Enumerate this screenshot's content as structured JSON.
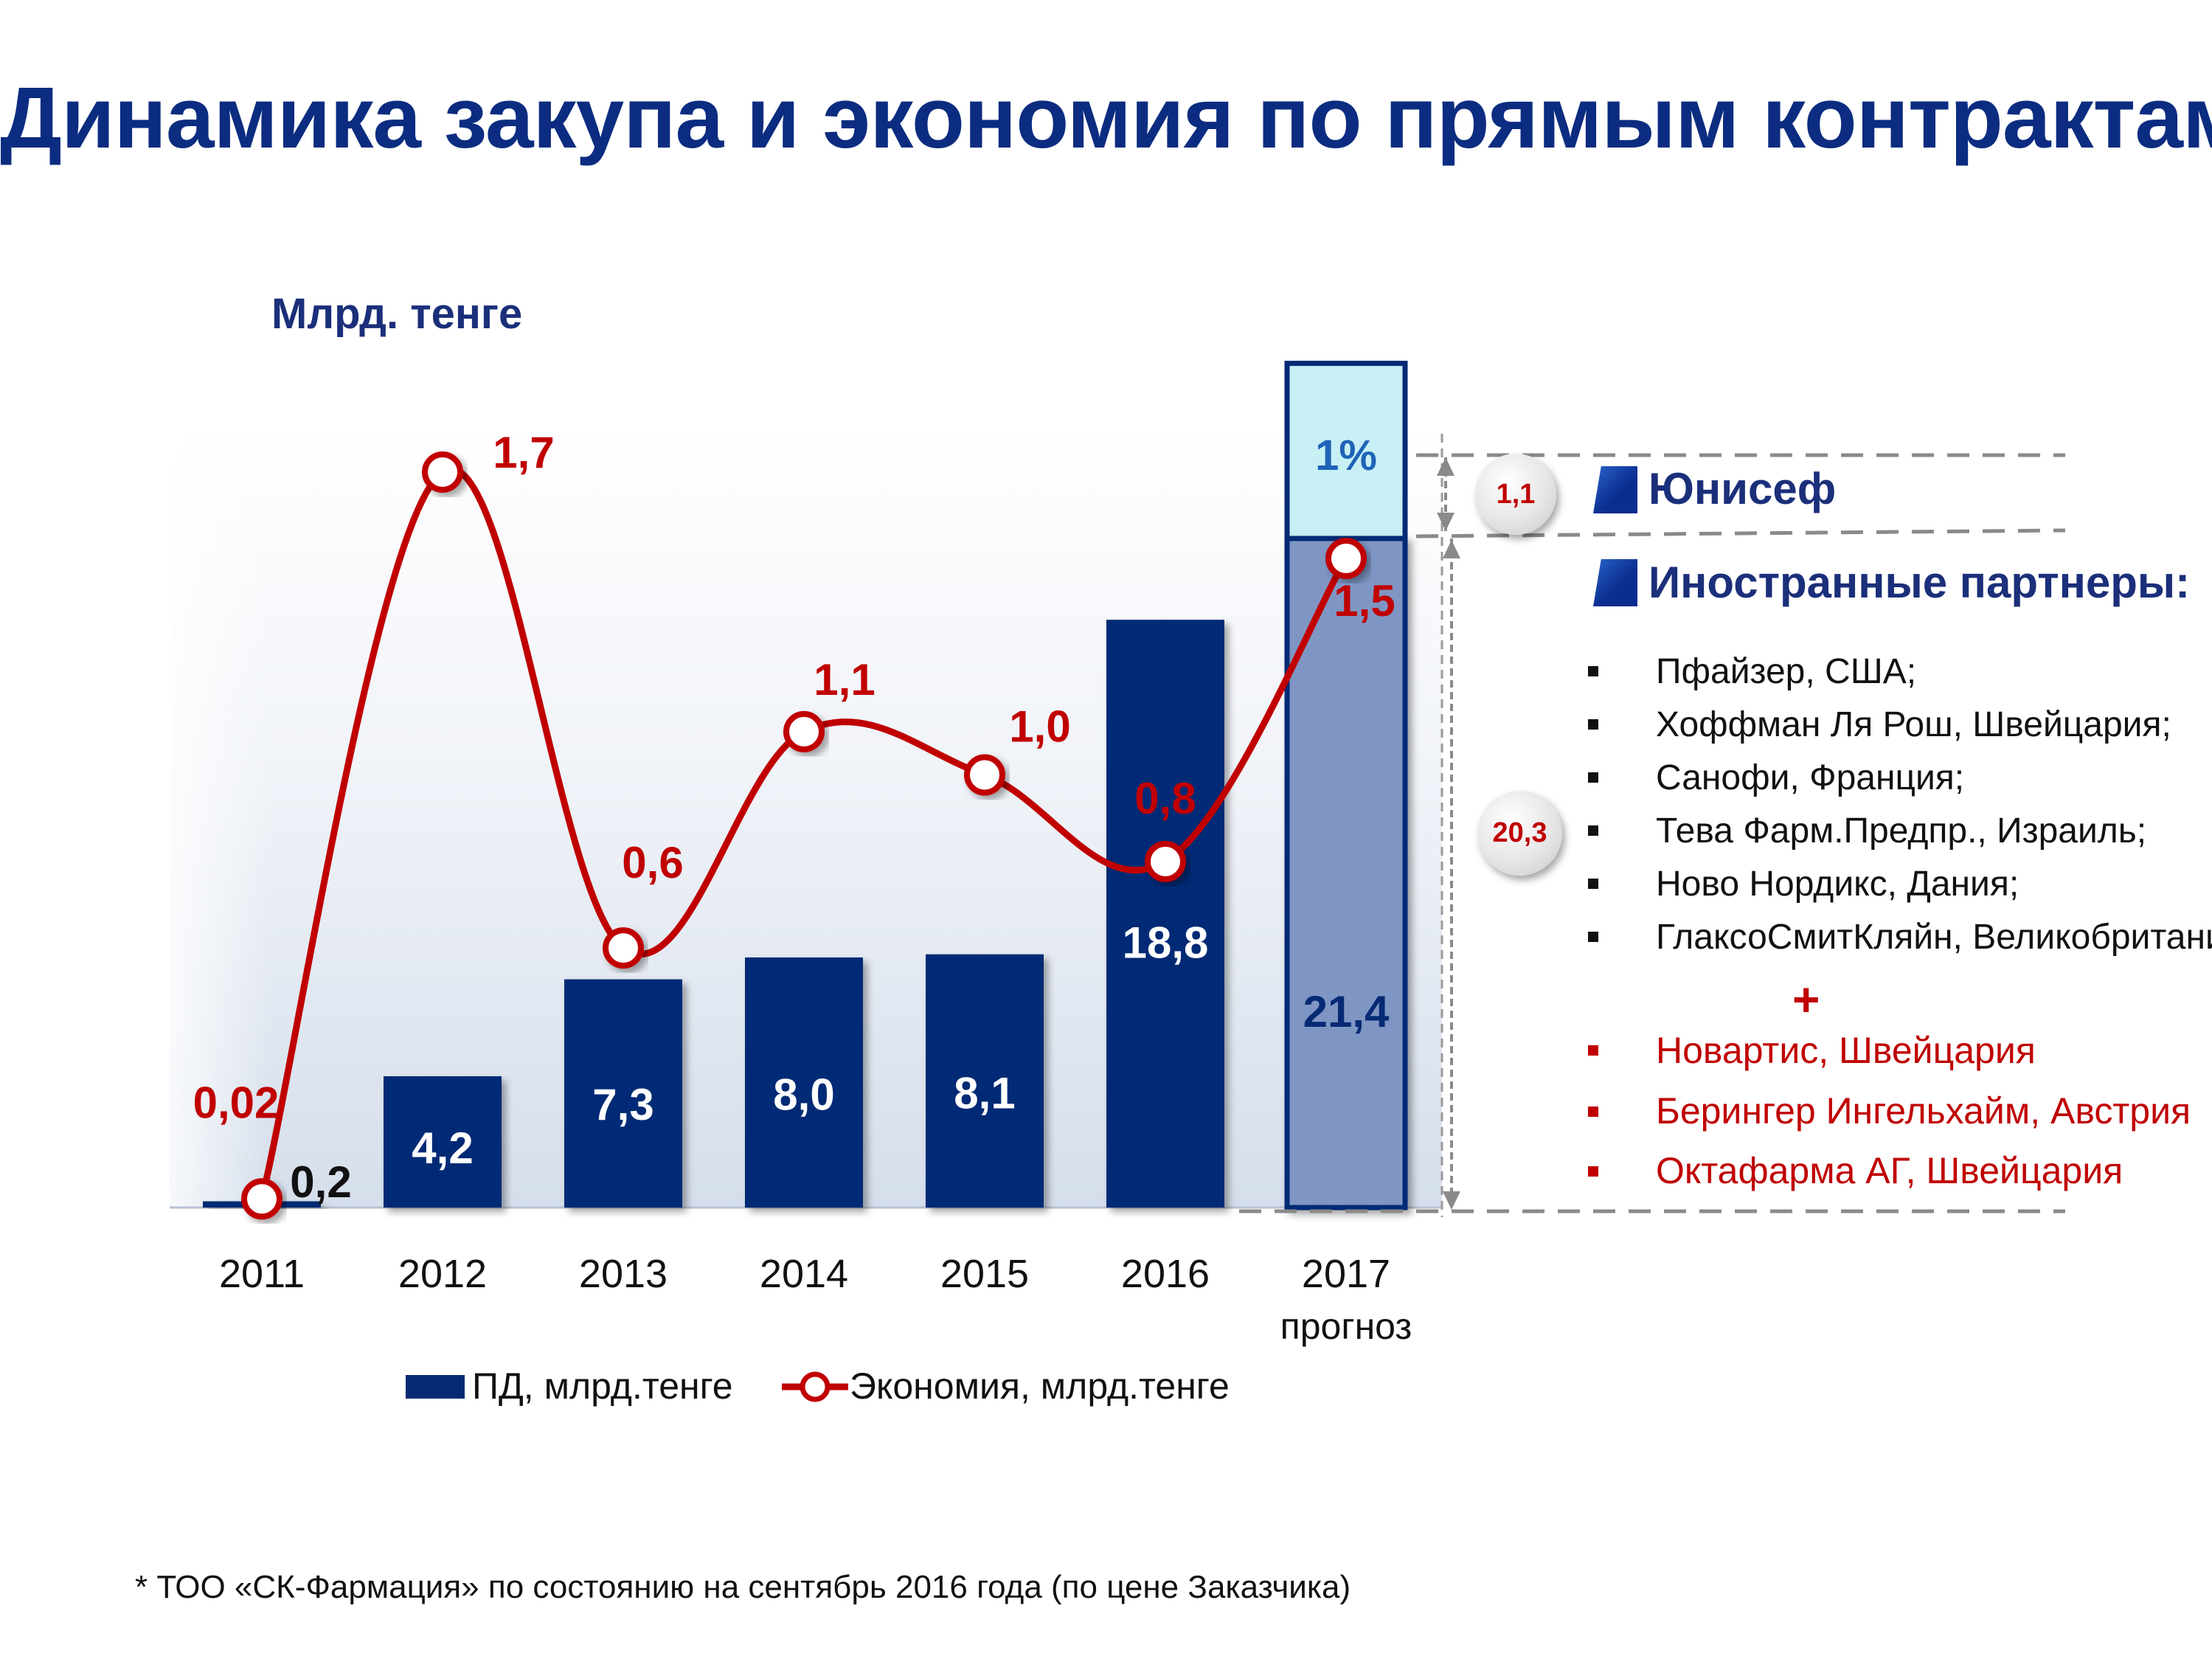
{
  "title": "Динамика закупа и экономия по прямым контрактам",
  "unit_label": "Млрд. тенге",
  "footnote": "* ТОО «СК-Фармация»  по состоянию на  сентябрь 2016 года (по цене Заказчика)",
  "colors": {
    "bar": "#062a74",
    "bar_forecast": "#7f96c4",
    "bar_forecast_top": "#c8f0f4",
    "line": "#c00000",
    "title": "#0b2c80"
  },
  "chart_data": {
    "type": "bar",
    "categories": [
      "2011",
      "2012",
      "2013",
      "2014",
      "2015",
      "2016",
      "2017"
    ],
    "category_sublabels": [
      "",
      "",
      "",
      "",
      "",
      "",
      "прогноз"
    ],
    "series": [
      {
        "name": "ПД, млрд.тенге",
        "type": "bar",
        "values": [
          0.2,
          4.2,
          7.3,
          8.0,
          8.1,
          18.8,
          21.4
        ],
        "labels": [
          "0,2",
          "4,2",
          "7,3",
          "8,0",
          "8,1",
          "18,8",
          "21,4"
        ]
      },
      {
        "name": "Экономия, млрд.тенге",
        "type": "line",
        "values": [
          0.02,
          1.7,
          0.6,
          1.1,
          1.0,
          0.8,
          1.5
        ],
        "labels": [
          "0,02",
          "1,7",
          "0,6",
          "1,1",
          "1,0",
          "0,8",
          "1,5"
        ]
      }
    ],
    "forecast_top_segment": {
      "label": "1%",
      "value": 1.1
    },
    "ylim_bar": [
      0,
      23
    ],
    "ylim_line": [
      0,
      1.9
    ],
    "grid": false,
    "legend": "bottom"
  },
  "breakdown": {
    "unicef": {
      "value": "1,1",
      "label": "Юнисеф"
    },
    "foreign": {
      "value": "20,3",
      "label": "Иностранные партнеры:",
      "items": [
        "Пфайзер, США;",
        "Хоффман Ля Рош, Швейцария;",
        "Санофи, Франция;",
        "Тева Фарм.Предпр., Израиль;",
        "Ново Нордикс, Дания;",
        "ГлаксоСмитКляйн, Великобритания"
      ],
      "plus": "+",
      "new_items": [
        "Новартис, Швейцария",
        "Берингер Ингельхайм, Австрия",
        "Октафарма АГ, Швейцария"
      ]
    }
  }
}
